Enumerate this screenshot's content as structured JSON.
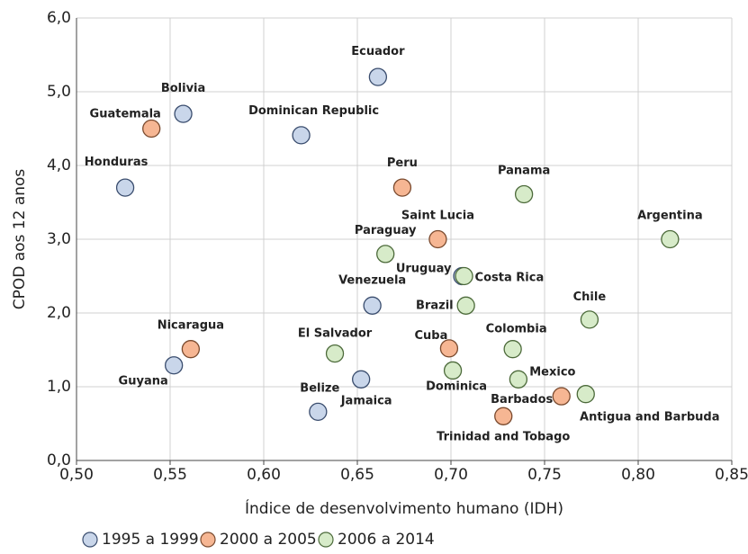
{
  "chart_data": {
    "type": "scatter",
    "xlabel": "Índice de desenvolvimento humano (IDH)",
    "ylabel": "CPOD aos 12 anos",
    "xlim": [
      0.5,
      0.85
    ],
    "xticks": [
      {
        "value": 0.5,
        "label": "0,50"
      },
      {
        "value": 0.55,
        "label": "0,55"
      },
      {
        "value": 0.6,
        "label": "0,60"
      },
      {
        "value": 0.65,
        "label": "0,65"
      },
      {
        "value": 0.7,
        "label": "0,70"
      },
      {
        "value": 0.75,
        "label": "0,75"
      },
      {
        "value": 0.8,
        "label": "0,80"
      },
      {
        "value": 0.85,
        "label": "0,85"
      }
    ],
    "ylim": [
      0,
      6
    ],
    "yticks": [
      {
        "value": 0,
        "label": "0,0"
      },
      {
        "value": 1,
        "label": "1,0"
      },
      {
        "value": 2,
        "label": "2,0"
      },
      {
        "value": 3,
        "label": "3,0"
      },
      {
        "value": 4,
        "label": "4,0"
      },
      {
        "value": 5,
        "label": "5,0"
      },
      {
        "value": 6,
        "label": "6,0"
      }
    ],
    "grid": true,
    "legend": "bottom",
    "series": [
      {
        "name": "1995 a 1999",
        "color": "#c9d6ea",
        "edge": "#3a4d6e",
        "labels": [
          "Ecuador",
          "Bolivia",
          "Dominican Republic",
          "Honduras",
          "Venezuela",
          "Guyana",
          "Belize",
          "Jamaica",
          "Uruguay"
        ],
        "x": [
          0.661,
          0.557,
          0.62,
          0.526,
          0.658,
          0.552,
          0.629,
          0.652,
          0.706
        ],
        "values": [
          5.2,
          4.7,
          4.41,
          3.7,
          2.1,
          1.29,
          0.66,
          1.1,
          2.5
        ]
      },
      {
        "name": "2000 a 2005",
        "color": "#f6b693",
        "edge": "#7a4a2e",
        "labels": [
          "Guatemala",
          "Peru",
          "Saint Lucia",
          "Nicaragua",
          "Cuba",
          "Barbados",
          "Trinidad and Tobago"
        ],
        "x": [
          0.54,
          0.674,
          0.693,
          0.561,
          0.699,
          0.759,
          0.728
        ],
        "values": [
          4.5,
          3.7,
          3.0,
          1.51,
          1.52,
          0.87,
          0.6
        ]
      },
      {
        "name": "2006 a 2014",
        "color": "#d7ebc9",
        "edge": "#4c6a3a",
        "labels": [
          "Panama",
          "Argentina",
          "Paraguay",
          "Costa Rica",
          "Brazil",
          "Chile",
          "El Salvador",
          "Colombia",
          "Dominica",
          "Mexico",
          "Antigua and Barbuda"
        ],
        "x": [
          0.739,
          0.817,
          0.665,
          0.707,
          0.708,
          0.774,
          0.638,
          0.733,
          0.701,
          0.736,
          0.772
        ],
        "values": [
          3.61,
          3.0,
          2.8,
          2.5,
          2.1,
          1.91,
          1.45,
          1.51,
          1.22,
          1.1,
          0.9
        ]
      }
    ]
  }
}
